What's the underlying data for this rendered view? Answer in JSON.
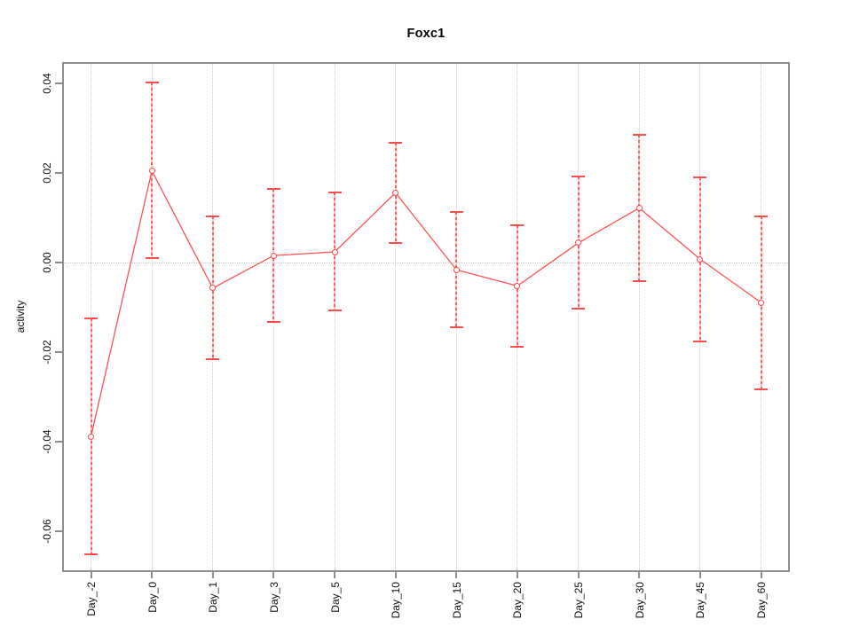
{
  "chart_data": {
    "type": "line",
    "title": "Foxc1",
    "xlabel": "",
    "ylabel": "activity",
    "categories": [
      "Day_-2",
      "Day_0",
      "Day_1",
      "Day_3",
      "Day_5",
      "Day_10",
      "Day_15",
      "Day_20",
      "Day_25",
      "Day_30",
      "Day_45",
      "Day_60"
    ],
    "series": [
      {
        "name": "activity",
        "values": [
          -0.0388,
          0.0205,
          -0.0057,
          0.0016,
          0.0024,
          0.0156,
          -0.0016,
          -0.0052,
          0.0044,
          0.0122,
          0.0008,
          -0.0089
        ],
        "ci_low": [
          -0.0651,
          0.001,
          -0.0215,
          -0.0133,
          -0.0106,
          0.0044,
          -0.0145,
          -0.0188,
          -0.0103,
          -0.0042,
          -0.0176,
          -0.0283
        ],
        "ci_high": [
          -0.0125,
          0.0402,
          0.0104,
          0.0164,
          0.0156,
          0.0268,
          0.0113,
          0.0083,
          0.0192,
          0.0286,
          0.0191,
          0.0103
        ]
      }
    ],
    "yticks": [
      0.04,
      0.02,
      0.0,
      -0.02,
      -0.04,
      -0.06
    ],
    "ytick_labels": [
      "0.04",
      "0.02",
      "0.00",
      "-0.02",
      "-0.04",
      "-0.06"
    ],
    "ylim": [
      -0.0687,
      0.0444
    ],
    "grid": {
      "vertical_per_category": true,
      "horizontal_at_zero": true
    },
    "legend": null,
    "marker": "open-circle",
    "colors": {
      "line": "#ff5252",
      "marker_stroke": "#ff4343",
      "error_cap": "#ff4d4d",
      "error_stem_dash": "#ff5f5f",
      "error_stem_light": "#ffc4c4",
      "gridline": "#c9c9c9",
      "axis_box": "#8e8e8e",
      "text": "#111111"
    }
  }
}
